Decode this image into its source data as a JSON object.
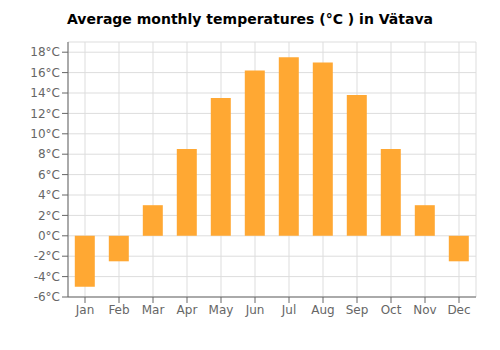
{
  "chart_data": {
    "type": "bar",
    "title": "Average monthly temperatures (°C ) in Vätava",
    "categories": [
      "Jan",
      "Feb",
      "Mar",
      "Apr",
      "May",
      "Jun",
      "Jul",
      "Aug",
      "Sep",
      "Oct",
      "Nov",
      "Dec"
    ],
    "values": [
      -5.0,
      -2.5,
      3.0,
      8.5,
      13.5,
      16.2,
      17.5,
      17.0,
      13.8,
      8.5,
      3.0,
      -2.5
    ],
    "color": "#FFA833",
    "ylim": [
      -6,
      19
    ],
    "yticks": [
      {
        "value": -6,
        "label": "-6°C"
      },
      {
        "value": -4,
        "label": "-4°C"
      },
      {
        "value": -2,
        "label": "-2°C"
      },
      {
        "value": 0,
        "label": "0°C"
      },
      {
        "value": 2,
        "label": "2°C"
      },
      {
        "value": 4,
        "label": "4°C"
      },
      {
        "value": 6,
        "label": "6°C"
      },
      {
        "value": 8,
        "label": "8°C"
      },
      {
        "value": 10,
        "label": "10°C"
      },
      {
        "value": 12,
        "label": "12°C"
      },
      {
        "value": 14,
        "label": "14°C"
      },
      {
        "value": 16,
        "label": "16°C"
      },
      {
        "value": 18,
        "label": "18°C"
      }
    ],
    "grid": true
  }
}
